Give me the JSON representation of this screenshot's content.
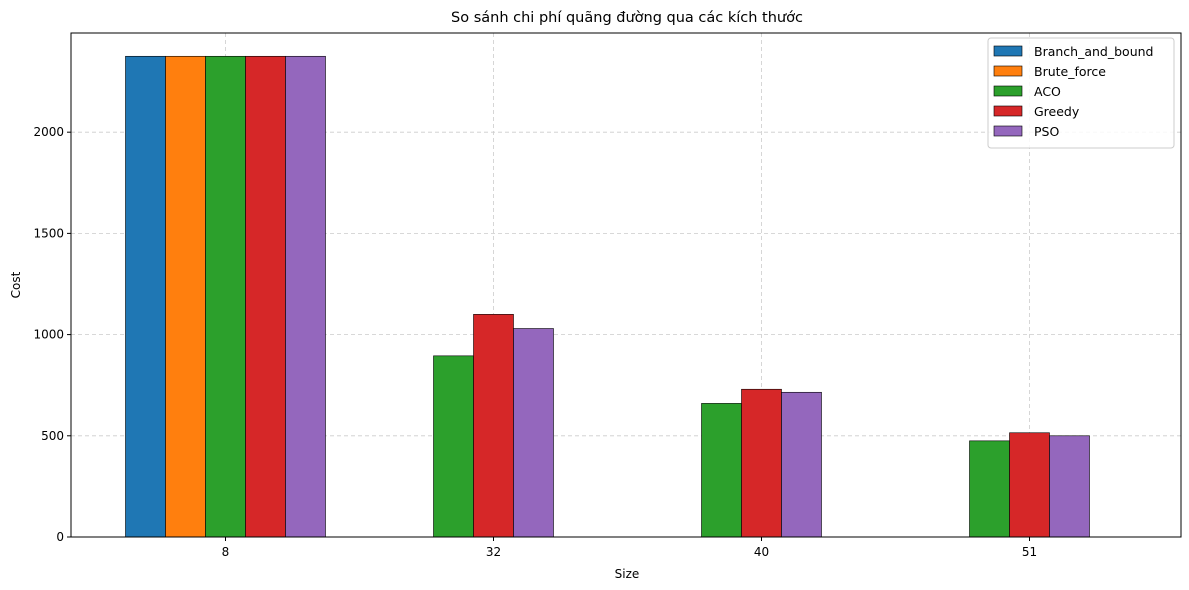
{
  "chart_data": {
    "type": "bar",
    "title": "So sánh chi phí quãng đường qua các kích thước",
    "xlabel": "Size",
    "ylabel": "Cost",
    "categories": [
      "8",
      "32",
      "40",
      "51"
    ],
    "ylim": [
      0,
      2490
    ],
    "yticks": [
      0,
      500,
      1000,
      1500,
      2000
    ],
    "grid": true,
    "legend_position": "top-right",
    "series": [
      {
        "name": "Branch_and_bound",
        "color": "#1f77b4",
        "values": [
          2375,
          null,
          null,
          null
        ]
      },
      {
        "name": "Brute_force",
        "color": "#ff7f0e",
        "values": [
          2375,
          null,
          null,
          null
        ]
      },
      {
        "name": "ACO",
        "color": "#2ca02c",
        "values": [
          2375,
          895,
          660,
          475
        ]
      },
      {
        "name": "Greedy",
        "color": "#d62728",
        "values": [
          2375,
          1100,
          730,
          515
        ]
      },
      {
        "name": "PSO",
        "color": "#9467bd",
        "values": [
          2375,
          1030,
          715,
          500
        ]
      }
    ]
  }
}
